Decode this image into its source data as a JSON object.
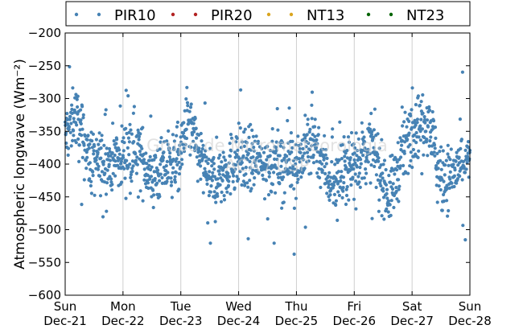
{
  "chart_data": {
    "type": "scatter",
    "ylabel": "Atmospheric longwave (Wm⁻²)",
    "ylim": [
      -600,
      -200
    ],
    "yticks": [
      -600,
      -550,
      -500,
      -450,
      -400,
      -350,
      -300,
      -250,
      -200
    ],
    "x_ticks": [
      {
        "day": "Sun",
        "date": "Dec-21"
      },
      {
        "day": "Mon",
        "date": "Dec-22"
      },
      {
        "day": "Tue",
        "date": "Dec-23"
      },
      {
        "day": "Wed",
        "date": "Dec-24"
      },
      {
        "day": "Thu",
        "date": "Dec-25"
      },
      {
        "day": "Fri",
        "date": "Dec-26"
      },
      {
        "day": "Sat",
        "date": "Dec-27"
      },
      {
        "day": "Sun",
        "date": "Dec-28"
      }
    ],
    "grid": "vertical",
    "legend_position": "top",
    "legend": [
      {
        "name": "PIR10",
        "color": "#4682b4"
      },
      {
        "name": "PIR20",
        "color": "#b22222"
      },
      {
        "name": "NT13",
        "color": "#daa520"
      },
      {
        "name": "NT23",
        "color": "#006400"
      }
    ],
    "watermark": [
      "Grupo de Micrometeorologia",
      "ACA / USP"
    ],
    "series": [
      {
        "name": "PIR10",
        "color": "#4682b4",
        "daily_mean_trend": [
          {
            "day_offset": 0.0,
            "value": -360
          },
          {
            "day_offset": 0.15,
            "value": -320
          },
          {
            "day_offset": 0.45,
            "value": -400
          },
          {
            "day_offset": 0.9,
            "value": -395
          },
          {
            "day_offset": 1.2,
            "value": -370
          },
          {
            "day_offset": 1.5,
            "value": -420
          },
          {
            "day_offset": 2.0,
            "value": -390
          },
          {
            "day_offset": 2.1,
            "value": -330
          },
          {
            "day_offset": 2.5,
            "value": -430
          },
          {
            "day_offset": 3.0,
            "value": -390
          },
          {
            "day_offset": 3.5,
            "value": -400
          },
          {
            "day_offset": 4.0,
            "value": -400
          },
          {
            "day_offset": 4.3,
            "value": -360
          },
          {
            "day_offset": 4.6,
            "value": -430
          },
          {
            "day_offset": 5.0,
            "value": -400
          },
          {
            "day_offset": 5.3,
            "value": -370
          },
          {
            "day_offset": 5.6,
            "value": -450
          },
          {
            "day_offset": 6.0,
            "value": -340
          },
          {
            "day_offset": 6.3,
            "value": -330
          },
          {
            "day_offset": 6.5,
            "value": -430
          },
          {
            "day_offset": 7.0,
            "value": -390
          }
        ]
      },
      {
        "name": "PIR20",
        "color": "#b22222",
        "values": []
      },
      {
        "name": "NT13",
        "color": "#daa520",
        "values": []
      },
      {
        "name": "NT23",
        "color": "#006400",
        "values": []
      }
    ]
  }
}
